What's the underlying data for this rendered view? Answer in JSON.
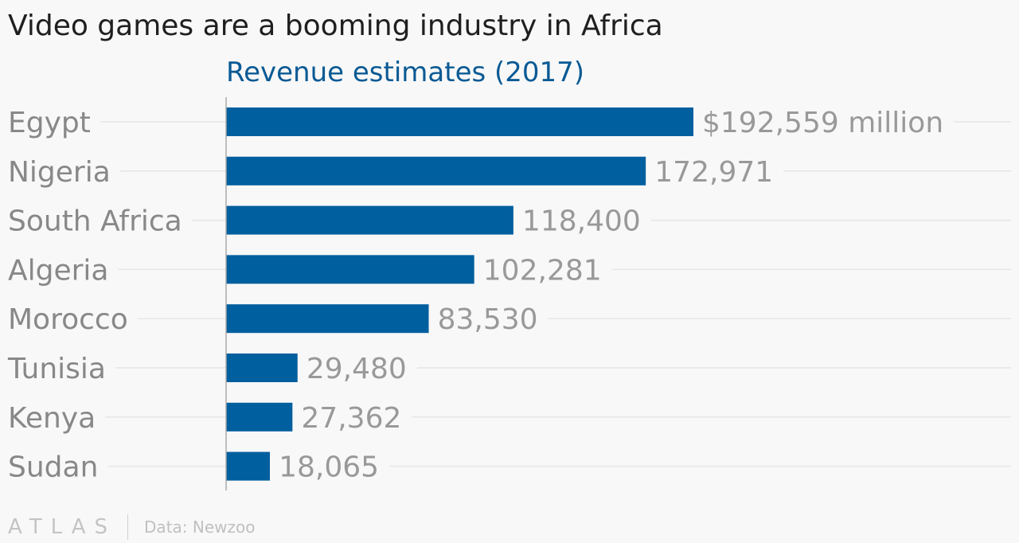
{
  "chart_data": {
    "type": "bar",
    "orientation": "horizontal",
    "title": "Video games are a booming industry in Africa",
    "subtitle": "Revenue estimates (2017)",
    "categories": [
      "Egypt",
      "Nigeria",
      "South Africa",
      "Algeria",
      "Morocco",
      "Tunisia",
      "Kenya",
      "Sudan"
    ],
    "values": [
      192559,
      172971,
      118400,
      102281,
      83530,
      29480,
      27362,
      18065
    ],
    "value_labels": [
      "$192,559 million",
      "172,971",
      "118,400",
      "102,281",
      "83,530",
      "29,480",
      "27,362",
      "18,065"
    ],
    "xlim": [
      0,
      192559
    ],
    "grid": true,
    "legend": "none",
    "bar_color": "#005f9e",
    "source": "Data: Newzoo"
  },
  "branding": {
    "logo_text": "ATLAS"
  },
  "colors": {
    "background": "#f8f8f8",
    "title": "#1f1f1f",
    "subtitle": "#0a5a94",
    "category_label": "#888888",
    "value_label": "#999999",
    "gridline": "#e6e6e6",
    "axis": "#aaaaaa"
  }
}
